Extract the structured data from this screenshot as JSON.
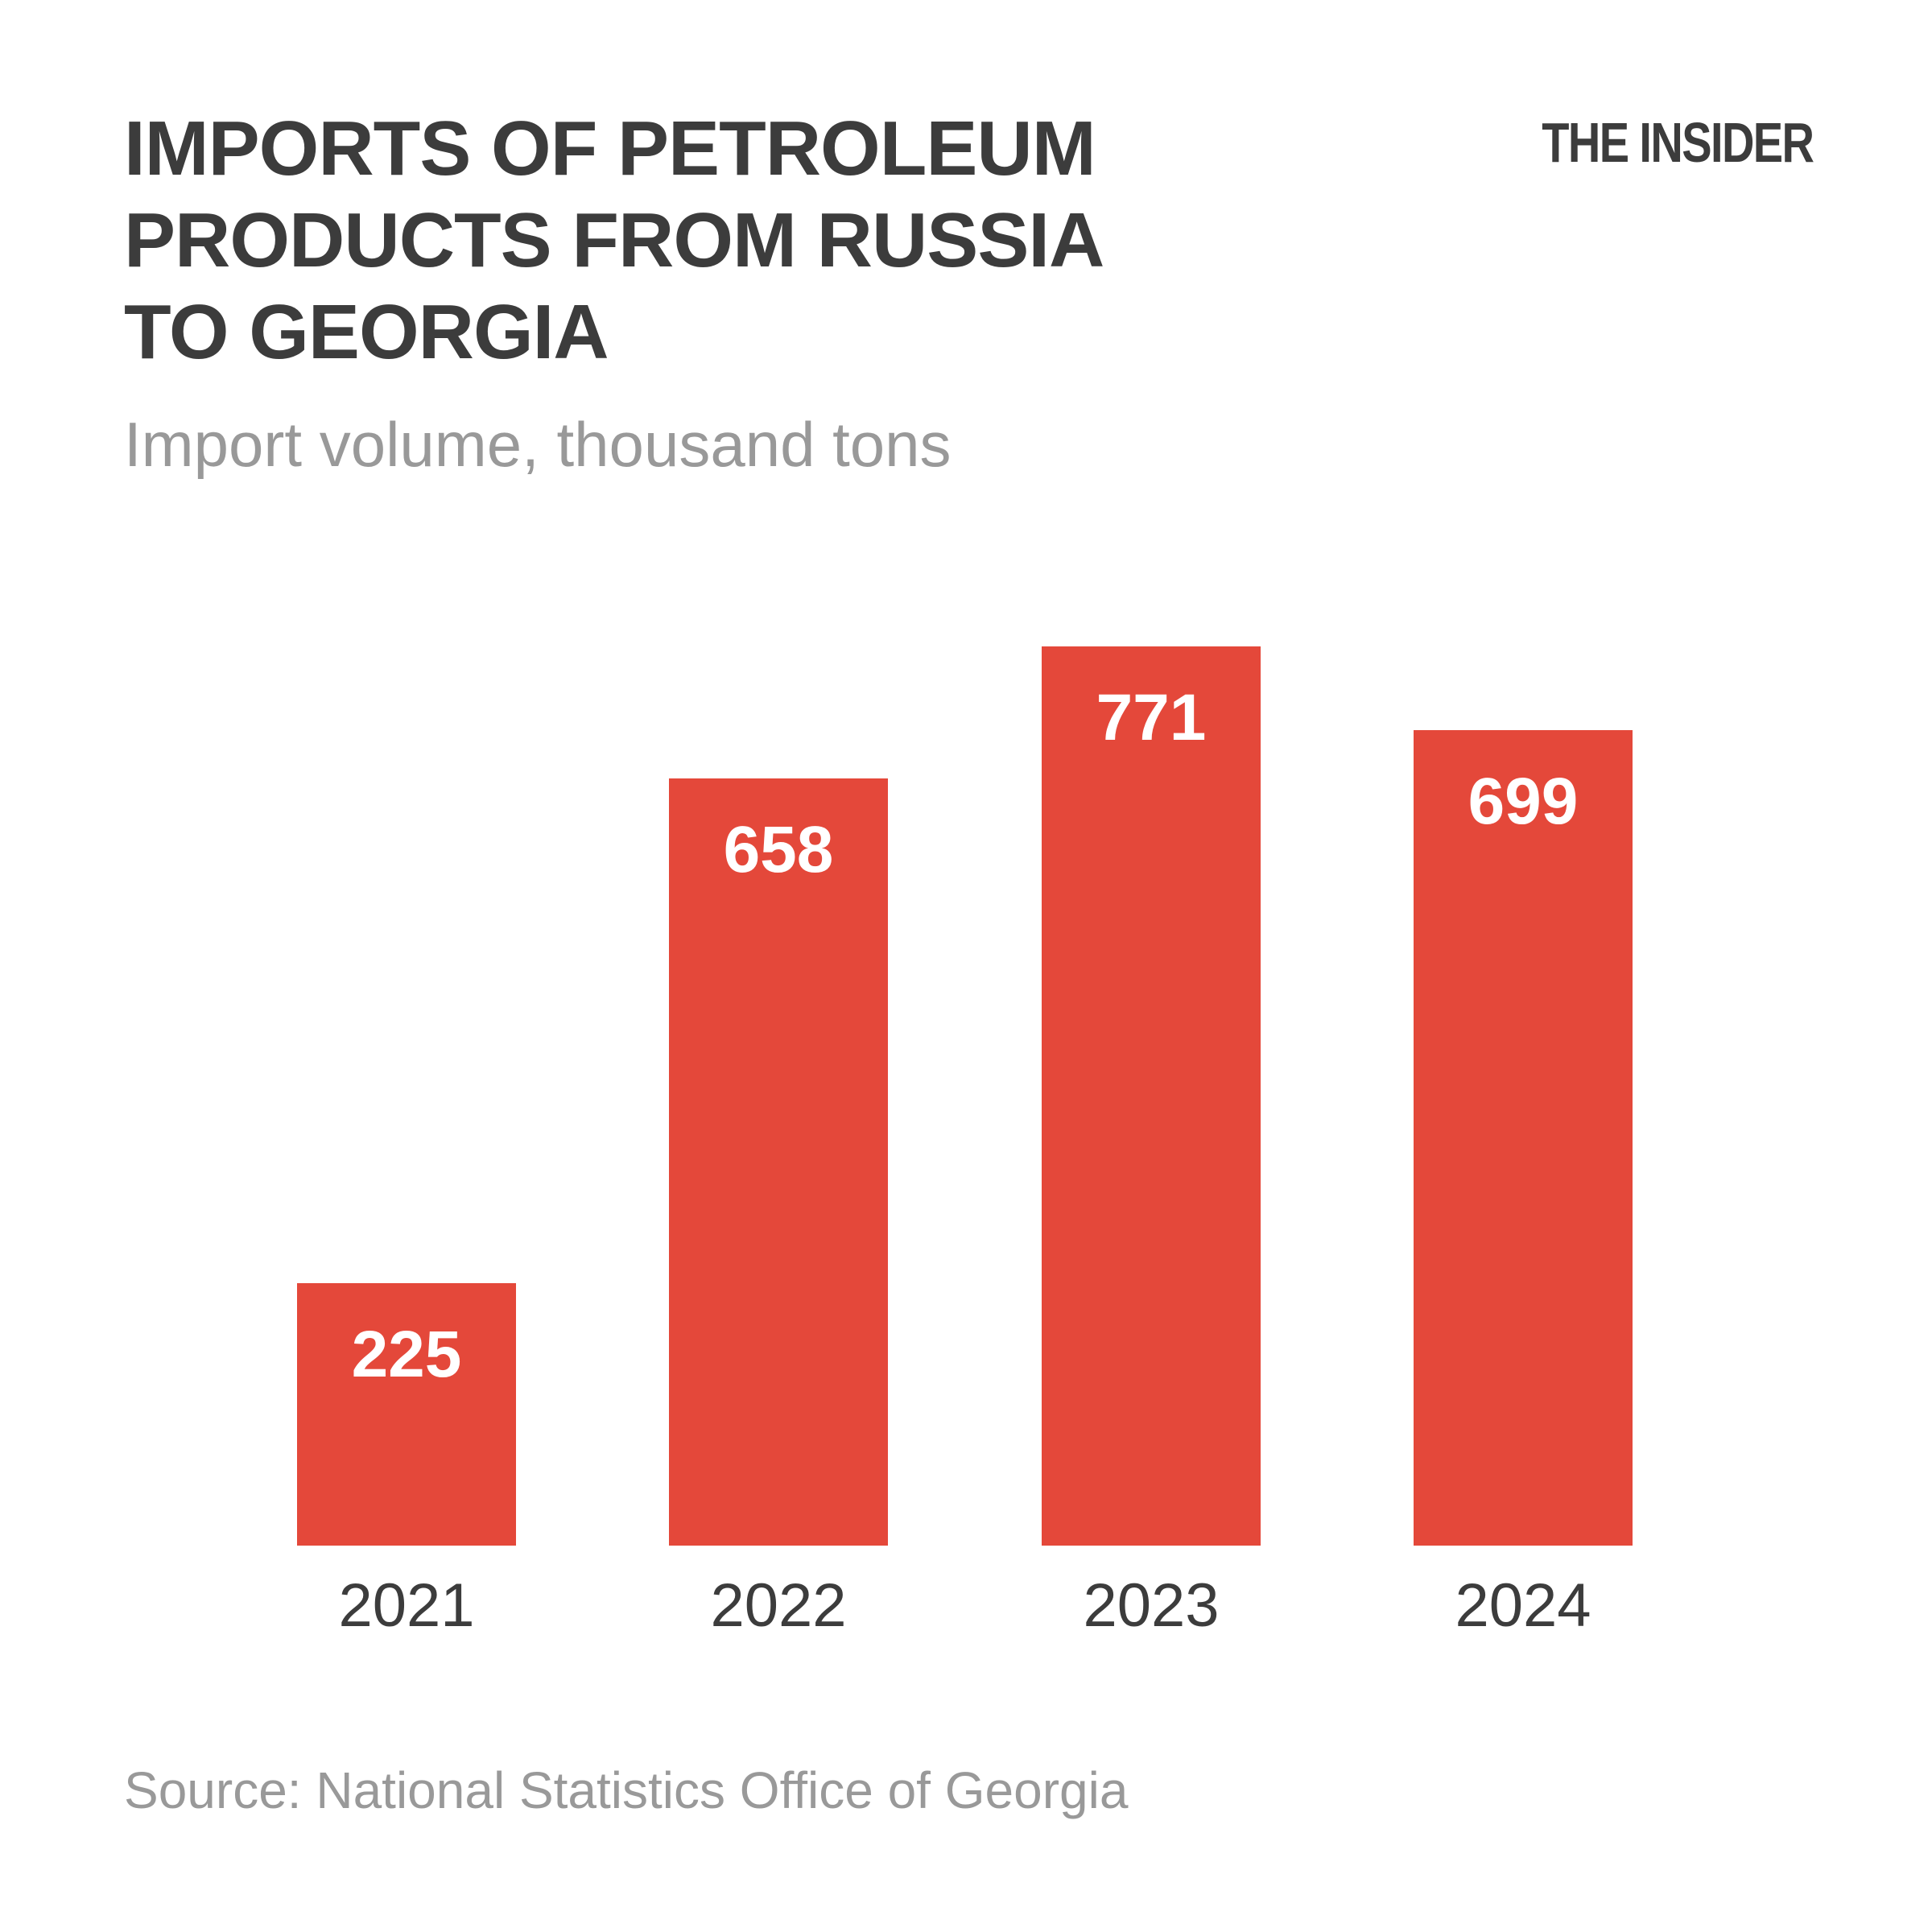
{
  "header": {
    "title": "IMPORTS OF PETROLEUM\nPRODUCTS FROM RUSSIA\nTO GEORGIA",
    "subtitle": "Import volume, thousand tons",
    "logo": "THE INSIDER"
  },
  "footer": {
    "source": "Source: National Statistics Office of Georgia"
  },
  "colors": {
    "bar": "#e4483a",
    "dark_text": "#3c3c3c",
    "muted_text": "#999999",
    "value_label": "#ffffff",
    "background": "#ffffff"
  },
  "chart_data": {
    "type": "bar",
    "title": "IMPORTS OF PETROLEUM PRODUCTS FROM RUSSIA TO GEORGIA",
    "subtitle": "Import volume, thousand tons",
    "categories": [
      "2021",
      "2022",
      "2023",
      "2024"
    ],
    "values": [
      225,
      658,
      771,
      699
    ],
    "series_color": "#e4483a",
    "value_labels_shown": true,
    "value_label_position": "inside-top",
    "xlabel": "",
    "ylabel": "Import volume, thousand tons",
    "ylim": [
      0,
      830
    ],
    "grid": false,
    "legend": false,
    "axes_shown": false,
    "source": "Source: National Statistics Office of Georgia"
  }
}
